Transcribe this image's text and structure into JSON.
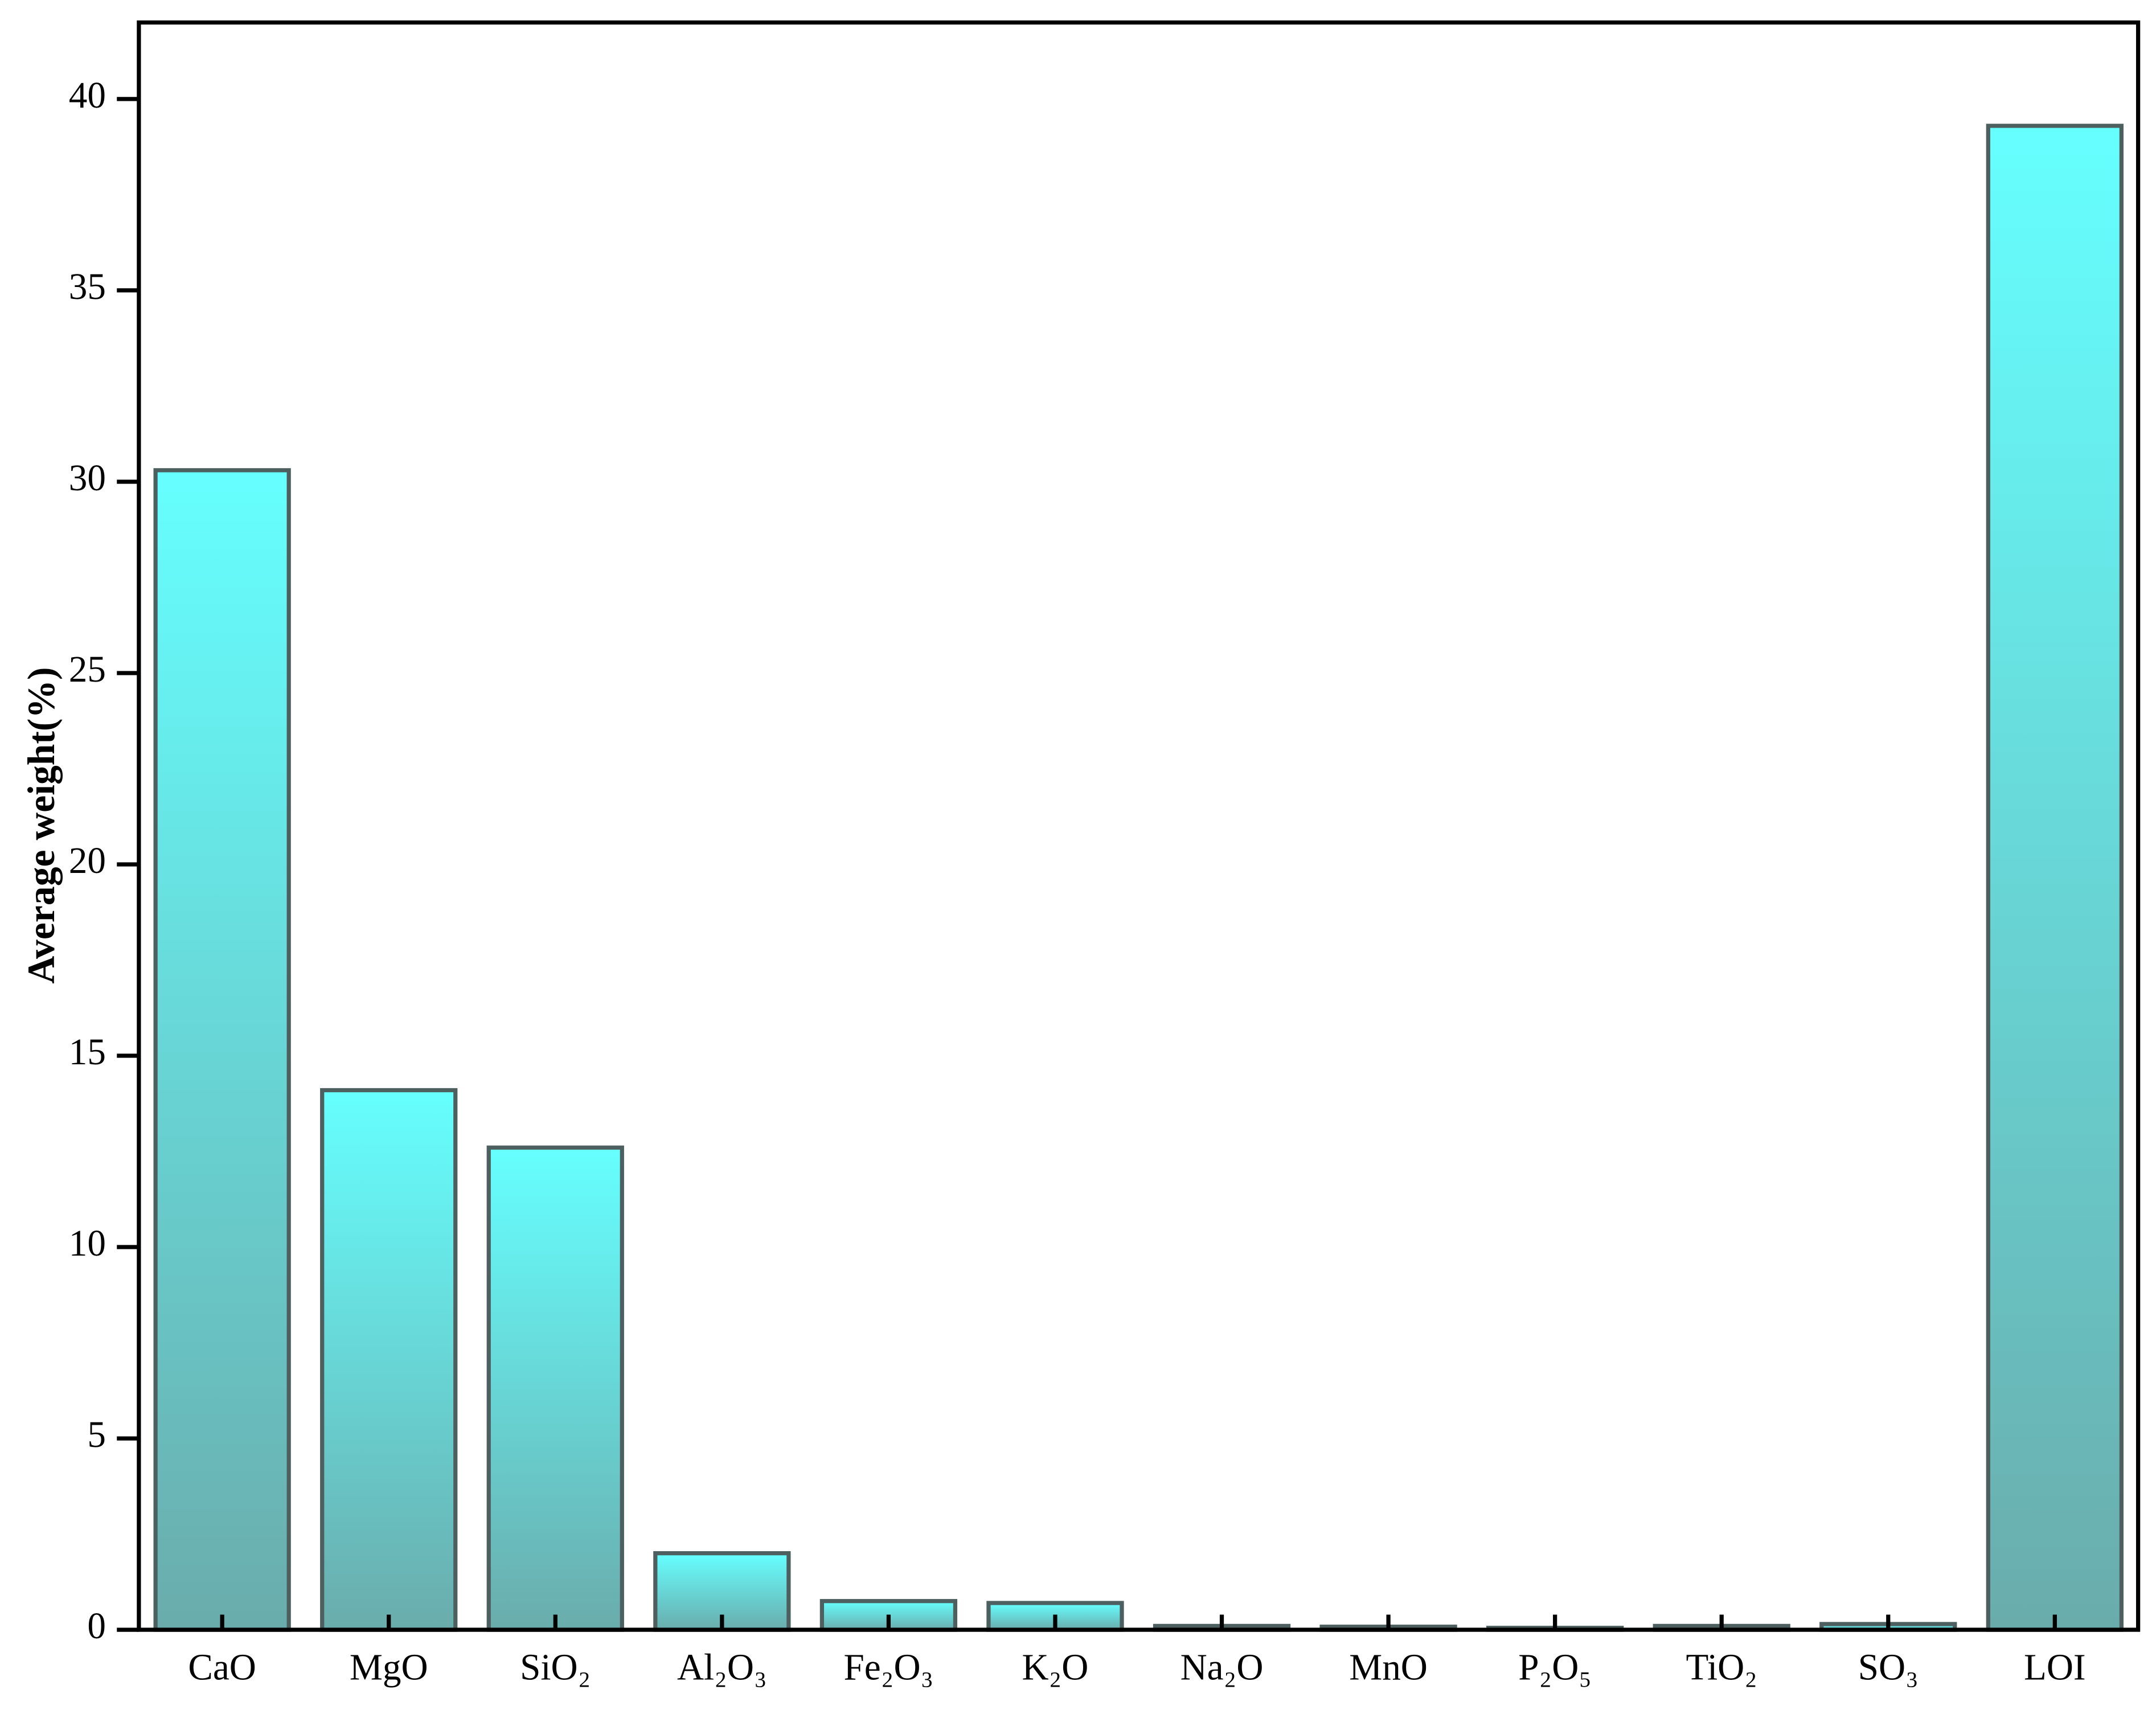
{
  "chart_data": {
    "type": "bar",
    "y_label": "Average weight(%)",
    "categories": [
      "CaO",
      "MgO",
      "SiO₂",
      "Al₂O₃",
      "Fe₂O₃",
      "K₂O",
      "Na₂O",
      "MnO",
      "P₂O₅",
      "TiO₂",
      "SO₃",
      "LOI"
    ],
    "values": [
      30.3,
      14.1,
      12.6,
      2.0,
      0.75,
      0.7,
      0.1,
      0.08,
      0.05,
      0.1,
      0.15,
      39.3
    ],
    "color": "#66ffff",
    "ylim": [
      0,
      42
    ],
    "yticks": [
      0,
      5,
      10,
      15,
      20,
      25,
      30,
      35,
      40
    ]
  }
}
